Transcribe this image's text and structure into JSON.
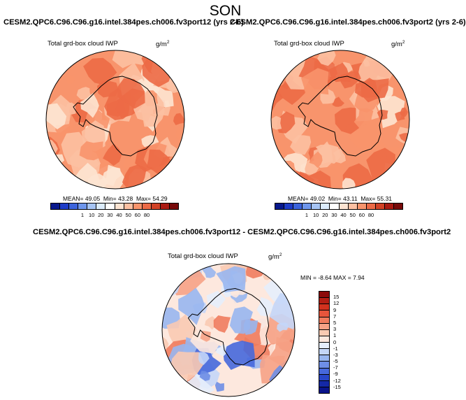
{
  "season_title": "SON",
  "chart_data": [
    {
      "type": "polar-contour-map",
      "title": "CESM2.QPC6.C96.C96.g16.intel.384pes.ch006.fv3port12 (yrs 2-6)",
      "variable": "Total grd-box cloud IWP",
      "units_base": "g/m",
      "units_sup": "2",
      "stats": {
        "mean": "49.05",
        "min": "43.28",
        "max": "54.29"
      },
      "stats_labels": {
        "mean": "MEAN=",
        "min": "Min=",
        "max": "Max="
      },
      "levels": [
        "1",
        "10",
        "20",
        "30",
        "40",
        "50",
        "60",
        "80"
      ],
      "colors": [
        "#08188c",
        "#1e3cc8",
        "#3c64dc",
        "#6e96ec",
        "#a6c4f4",
        "#dcecfc",
        "#ffffff",
        "#fde4d2",
        "#fcc0a2",
        "#f8946c",
        "#ec6a46",
        "#d24226",
        "#aa1a12",
        "#780a0a"
      ]
    },
    {
      "type": "polar-contour-map",
      "title": "CESM2.QPC6.C96.C96.g16.intel.384pes.ch006.fv3port2 (yrs 2-6)",
      "variable": "Total grd-box cloud IWP",
      "units_base": "g/m",
      "units_sup": "2",
      "stats": {
        "mean": "49.02",
        "min": "43.11",
        "max": "55.31"
      },
      "stats_labels": {
        "mean": "MEAN=",
        "min": "Min=",
        "max": "Max="
      },
      "levels": [
        "1",
        "10",
        "20",
        "30",
        "40",
        "50",
        "60",
        "80"
      ],
      "colors": [
        "#08188c",
        "#1e3cc8",
        "#3c64dc",
        "#6e96ec",
        "#a6c4f4",
        "#dcecfc",
        "#ffffff",
        "#fde4d2",
        "#fcc0a2",
        "#f8946c",
        "#ec6a46",
        "#d24226",
        "#aa1a12",
        "#780a0a"
      ]
    },
    {
      "type": "polar-contour-map",
      "title": "CESM2.QPC6.C96.C96.g16.intel.384pes.ch006.fv3port12 - CESM2.QPC6.C96.C96.g16.intel.384pes.ch006.fv3port2",
      "variable": "Total grd-box cloud IWP",
      "units_base": "g/m",
      "units_sup": "2",
      "min_max_text": "MIN = -8.64 MAX =  7.94",
      "levels": [
        "15",
        "12",
        "9",
        "7",
        "5",
        "3",
        "1",
        "0",
        "-1",
        "-3",
        "-5",
        "-7",
        "-9",
        "-12",
        "-15"
      ],
      "colors": [
        "#8c0a0a",
        "#b41e14",
        "#d2321e",
        "#e6553c",
        "#f07c5e",
        "#f6a286",
        "#facab2",
        "#fde8de",
        "#e6eefc",
        "#c4d6f8",
        "#98b6f0",
        "#6e8ee6",
        "#4668dc",
        "#2846c8",
        "#1428a6",
        "#0a148a"
      ]
    }
  ]
}
